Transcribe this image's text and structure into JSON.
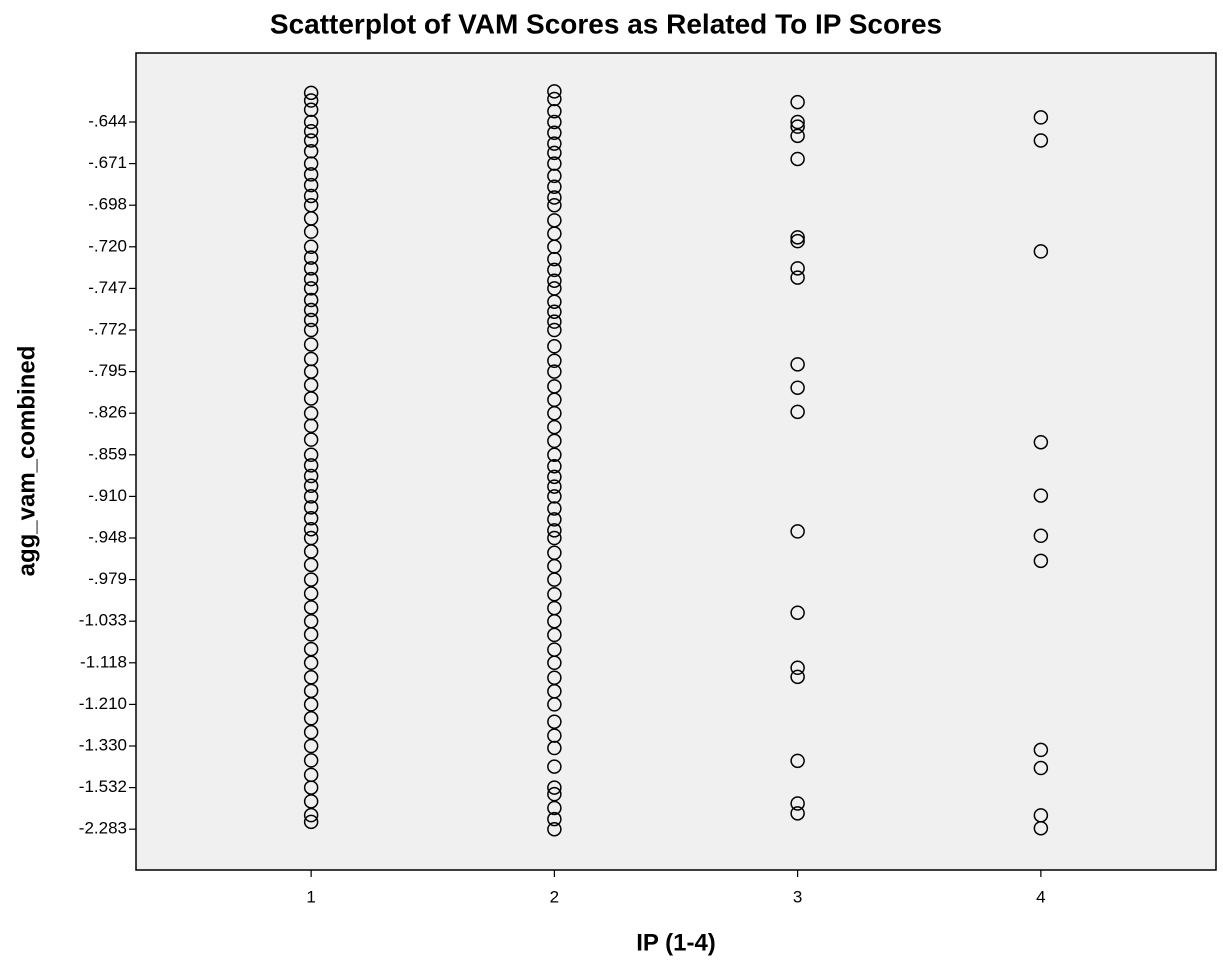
{
  "chart_data": {
    "type": "scatter",
    "title": "Scatterplot of VAM Scores as Related To IP Scores",
    "x_label": "IP (1-4)",
    "y_label": "agg_vam_combined",
    "xlim": [
      0.28,
      4.72
    ],
    "xticks": [
      1,
      2,
      3,
      4
    ],
    "ylim": [
      -3.016,
      -0.599
    ],
    "yticks": [
      {
        "value": -0.644,
        "label": "-.644"
      },
      {
        "value": -0.671,
        "label": "-.671"
      },
      {
        "value": -0.698,
        "label": "-.698"
      },
      {
        "value": -0.72,
        "label": "-.720"
      },
      {
        "value": -0.747,
        "label": "-.747"
      },
      {
        "value": -0.772,
        "label": "-.772"
      },
      {
        "value": -0.795,
        "label": "-.795"
      },
      {
        "value": -0.826,
        "label": "-.826"
      },
      {
        "value": -0.859,
        "label": "-.859"
      },
      {
        "value": -0.91,
        "label": "-.910"
      },
      {
        "value": -0.948,
        "label": "-.948"
      },
      {
        "value": -0.979,
        "label": "-.979"
      },
      {
        "value": -1.033,
        "label": "-1.033"
      },
      {
        "value": -1.118,
        "label": "-1.118"
      },
      {
        "value": -1.21,
        "label": "-1.210"
      },
      {
        "value": -1.33,
        "label": "-1.330"
      },
      {
        "value": -1.532,
        "label": "-1.532"
      },
      {
        "value": -2.283,
        "label": "-2.283"
      }
    ],
    "color": "#000000",
    "background": "#f0f0f0",
    "x": [
      1,
      1,
      1,
      1,
      1,
      1,
      1,
      1,
      1,
      1,
      1,
      1,
      1,
      1,
      1,
      1,
      1,
      1,
      1,
      1,
      1,
      1,
      1,
      1,
      1,
      1,
      1,
      1,
      1,
      1,
      1,
      1,
      1,
      1,
      1,
      1,
      1,
      1,
      1,
      1,
      1,
      1,
      1,
      1,
      1,
      1,
      1,
      1,
      1,
      1,
      1,
      1,
      1,
      1,
      1,
      1,
      1,
      1,
      1,
      1,
      1,
      2,
      2,
      2,
      2,
      2,
      2,
      2,
      2,
      2,
      2,
      2,
      2,
      2,
      2,
      2,
      2,
      2,
      2,
      2,
      2,
      2,
      2,
      2,
      2,
      2,
      2,
      2,
      2,
      2,
      2,
      2,
      2,
      2,
      2,
      2,
      2,
      2,
      2,
      2,
      2,
      2,
      2,
      2,
      2,
      2,
      2,
      2,
      2,
      2,
      2,
      2,
      2,
      2,
      2,
      2,
      2,
      2,
      2,
      2,
      2,
      2,
      3,
      3,
      3,
      3,
      3,
      3,
      3,
      3,
      3,
      3,
      3,
      3,
      3,
      3,
      3,
      3,
      3,
      3,
      3,
      4,
      4,
      4,
      4,
      4,
      4,
      4,
      4,
      4,
      4,
      4
    ],
    "y": [
      -0.625,
      -0.63,
      -0.636,
      -0.644,
      -0.65,
      -0.656,
      -0.663,
      -0.671,
      -0.678,
      -0.685,
      -0.692,
      -0.698,
      -0.705,
      -0.712,
      -0.72,
      -0.727,
      -0.734,
      -0.741,
      -0.747,
      -0.754,
      -0.76,
      -0.766,
      -0.772,
      -0.78,
      -0.788,
      -0.795,
      -0.805,
      -0.815,
      -0.826,
      -0.836,
      -0.847,
      -0.859,
      -0.872,
      -0.885,
      -0.897,
      -0.91,
      -0.92,
      -0.93,
      -0.94,
      -0.948,
      -0.958,
      -0.968,
      -0.979,
      -0.997,
      -1.015,
      -1.033,
      -1.06,
      -1.09,
      -1.118,
      -1.15,
      -1.18,
      -1.21,
      -1.25,
      -1.29,
      -1.33,
      -1.4,
      -1.47,
      -1.532,
      -1.78,
      -2.03,
      -2.15,
      -0.624,
      -0.629,
      -0.637,
      -0.644,
      -0.651,
      -0.658,
      -0.664,
      -0.671,
      -0.679,
      -0.686,
      -0.693,
      -0.698,
      -0.706,
      -0.713,
      -0.72,
      -0.728,
      -0.735,
      -0.742,
      -0.747,
      -0.755,
      -0.761,
      -0.767,
      -0.772,
      -0.781,
      -0.789,
      -0.795,
      -0.806,
      -0.816,
      -0.826,
      -0.837,
      -0.848,
      -0.859,
      -0.873,
      -0.886,
      -0.898,
      -0.91,
      -0.921,
      -0.931,
      -0.941,
      -0.948,
      -0.959,
      -0.969,
      -0.979,
      -0.998,
      -1.016,
      -1.033,
      -1.061,
      -1.091,
      -1.118,
      -1.151,
      -1.181,
      -1.21,
      -1.26,
      -1.3,
      -1.34,
      -1.43,
      -1.532,
      -1.65,
      -1.9,
      -2.1,
      -2.283,
      -0.631,
      -0.644,
      -0.647,
      -0.653,
      -0.668,
      -0.715,
      -0.717,
      -0.734,
      -0.74,
      -0.791,
      -0.807,
      -0.825,
      -0.942,
      -1.022,
      -1.129,
      -1.149,
      -1.402,
      -1.818,
      -1.997,
      -0.641,
      -0.656,
      -0.723,
      -0.849,
      -0.909,
      -0.946,
      -0.965,
      -1.349,
      -1.437,
      -2.033,
      -2.265
    ]
  }
}
